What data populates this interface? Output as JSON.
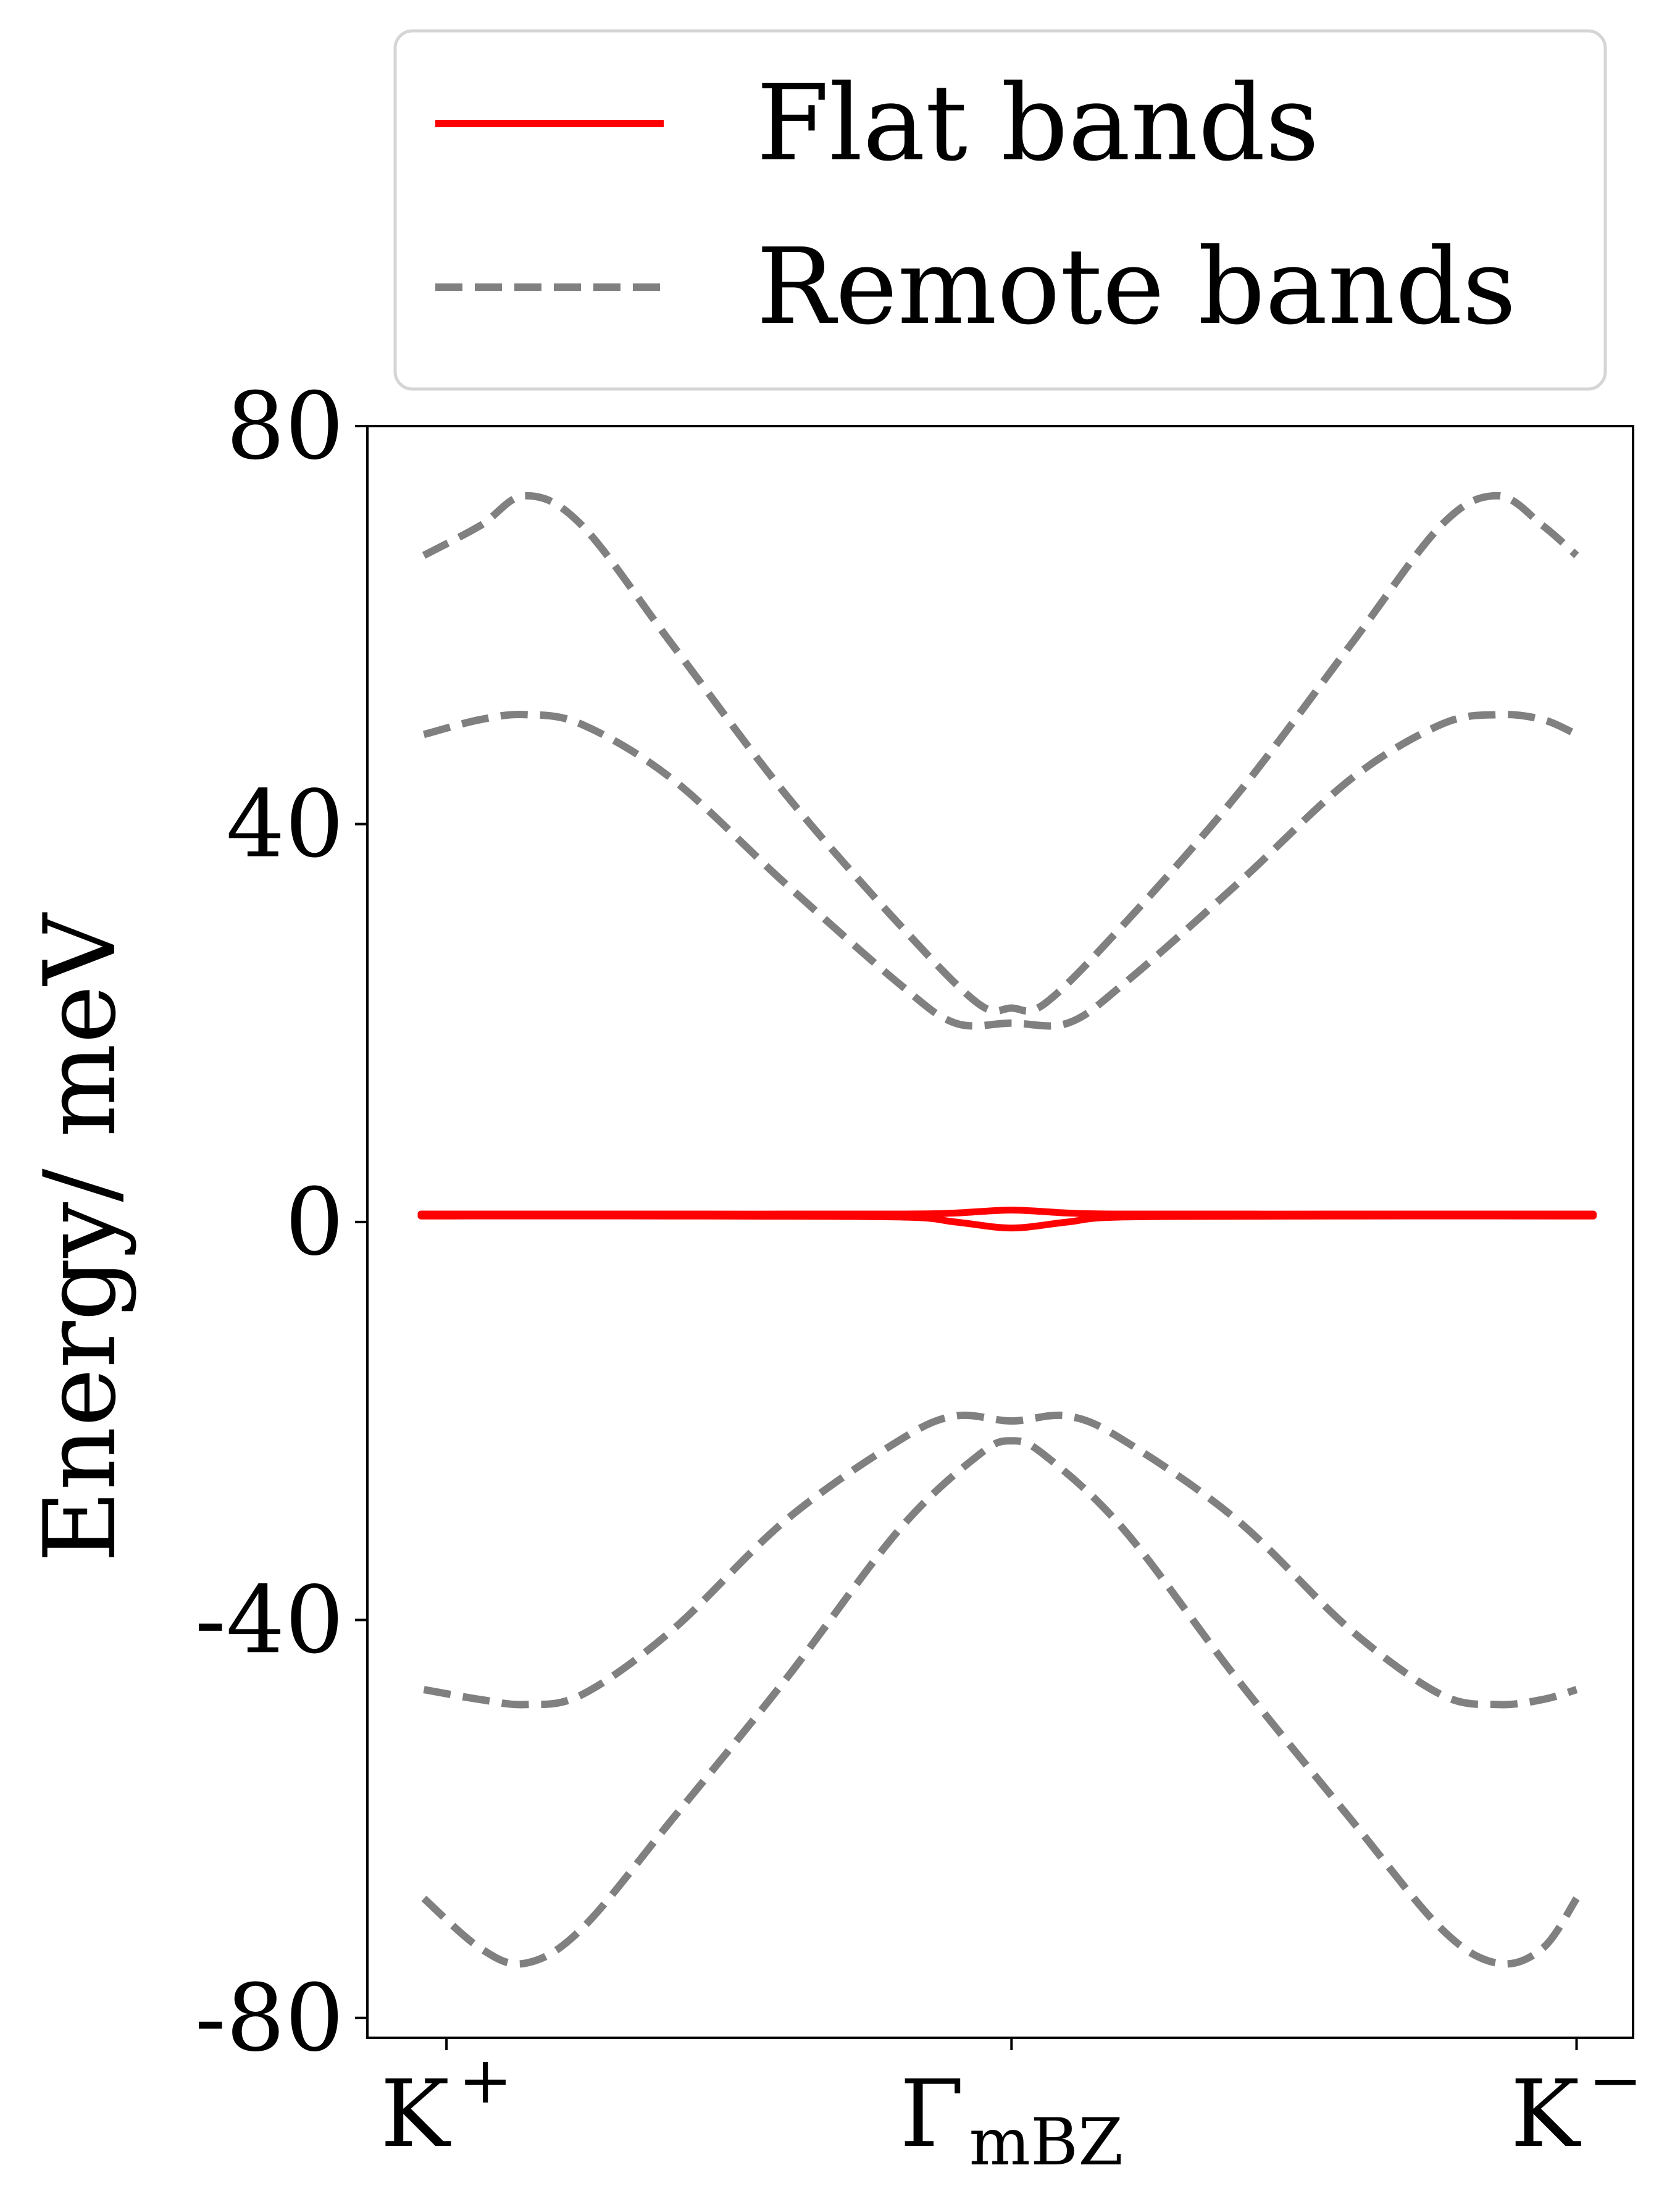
{
  "chart_data": {
    "type": "line",
    "ylabel": "Energy/ meV",
    "xlabel": "",
    "ylim": [
      -82,
      80
    ],
    "xlim": [
      -0.07,
      1.05
    ],
    "yticks": [
      80,
      40,
      0,
      -40,
      -80
    ],
    "ytick_labels": [
      "80",
      "40",
      "0",
      "-40",
      "-80"
    ],
    "xticks": [
      {
        "pos": 0,
        "main": "K",
        "sup": "+",
        "sub": ""
      },
      {
        "pos": 0.5,
        "main": "Γ",
        "sup": "",
        "sub": "mBZ"
      },
      {
        "pos": 1,
        "main": "K",
        "sup": "−",
        "sub": ""
      }
    ],
    "legend": {
      "placement": "above-plot",
      "entries": [
        {
          "label": "Flat bands",
          "color": "#ff0000",
          "style": "solid"
        },
        {
          "label": "Remote bands",
          "color": "#808080",
          "style": "dashed"
        }
      ]
    },
    "series": [
      {
        "legend": "Flat bands",
        "color": "#ff0000",
        "style": "solid",
        "x": [
          -0.02,
          0,
          0.2,
          0.4,
          0.45,
          0.5,
          0.55,
          0.6,
          0.8,
          1,
          1.0
        ],
        "y": [
          0.8,
          0.8,
          0.8,
          0.8,
          0.9,
          1.2,
          0.9,
          0.8,
          0.8,
          0.8,
          0.8
        ]
      },
      {
        "legend": "Flat bands",
        "color": "#ff0000",
        "style": "solid",
        "x": [
          -0.02,
          0,
          0.2,
          0.4,
          0.45,
          0.5,
          0.55,
          0.6,
          0.8,
          1,
          1.0
        ],
        "y": [
          0.6,
          0.6,
          0.6,
          0.5,
          0,
          -0.6,
          0,
          0.5,
          0.6,
          0.6,
          0.6
        ]
      },
      {
        "legend": "Remote bands",
        "color": "#808080",
        "style": "dashed",
        "x": [
          -0.02,
          0.03,
          0.07,
          0.12,
          0.2,
          0.3,
          0.4,
          0.47,
          0.5,
          0.53,
          0.6,
          0.7,
          0.8,
          0.88,
          0.93,
          0.97,
          1.0
        ],
        "y": [
          67,
          70,
          73,
          70,
          58,
          43,
          30,
          22,
          21.5,
          22,
          30,
          43,
          58,
          70,
          73,
          70,
          67
        ]
      },
      {
        "legend": "Remote bands",
        "color": "#808080",
        "style": "dashed",
        "x": [
          -0.02,
          0.03,
          0.07,
          0.12,
          0.2,
          0.3,
          0.4,
          0.45,
          0.5,
          0.55,
          0.6,
          0.7,
          0.8,
          0.88,
          0.93,
          0.97,
          1.0
        ],
        "y": [
          49,
          50.5,
          51,
          50,
          44.5,
          34,
          24,
          20,
          20,
          20,
          24,
          34,
          44.5,
          50,
          51,
          50.5,
          49
        ]
      },
      {
        "legend": "Remote bands",
        "color": "#808080",
        "style": "dashed",
        "x": [
          -0.02,
          0.03,
          0.07,
          0.12,
          0.2,
          0.3,
          0.4,
          0.45,
          0.5,
          0.55,
          0.6,
          0.7,
          0.8,
          0.88,
          0.93,
          0.97,
          1.0
        ],
        "y": [
          -47,
          -48,
          -48.5,
          -47.5,
          -41,
          -30,
          -22,
          -19.5,
          -20,
          -19.5,
          -22,
          -30,
          -41,
          -47.5,
          -48.5,
          -48,
          -47
        ]
      },
      {
        "legend": "Remote bands",
        "color": "#808080",
        "style": "dashed",
        "x": [
          -0.02,
          0.03,
          0.07,
          0.12,
          0.2,
          0.3,
          0.4,
          0.47,
          0.5,
          0.53,
          0.6,
          0.7,
          0.8,
          0.88,
          0.93,
          0.97,
          1.0
        ],
        "y": [
          -68,
          -73,
          -74.5,
          -71,
          -60,
          -46,
          -31,
          -23.5,
          -22,
          -23.5,
          -31,
          -46,
          -60,
          -71,
          -74.5,
          -73,
          -68
        ]
      }
    ]
  }
}
